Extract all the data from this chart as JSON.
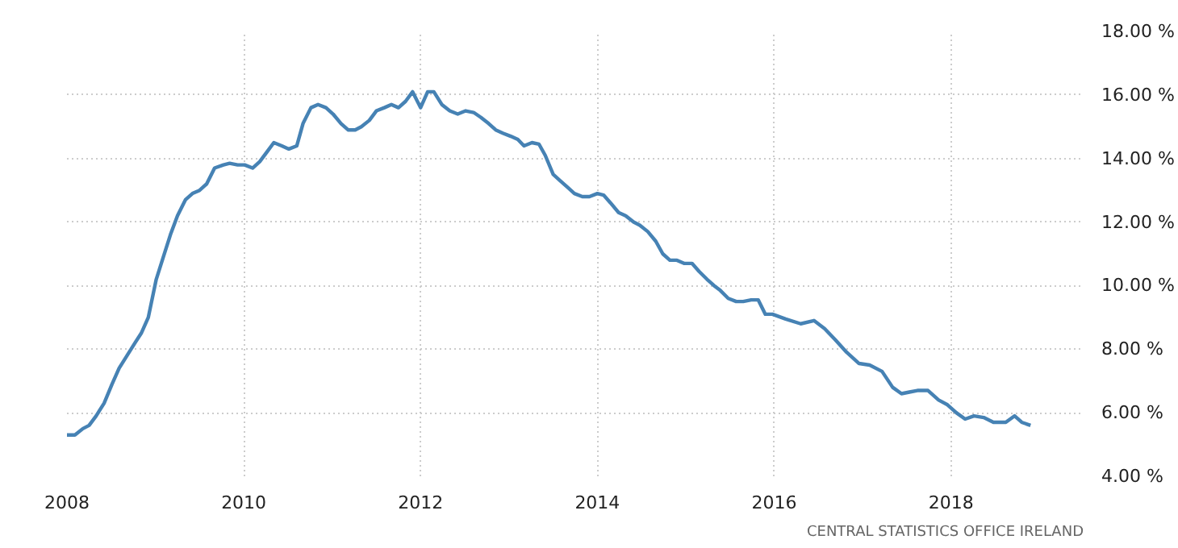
{
  "chart_data": {
    "type": "line",
    "x": [
      2008.0,
      2008.09,
      2008.18,
      2008.25,
      2008.33,
      2008.42,
      2008.51,
      2008.59,
      2008.68,
      2008.77,
      2008.84,
      2008.92,
      2009.01,
      2009.09,
      2009.17,
      2009.25,
      2009.34,
      2009.42,
      2009.5,
      2009.58,
      2009.67,
      2009.77,
      2009.84,
      2009.93,
      2010.01,
      2010.1,
      2010.18,
      2010.26,
      2010.34,
      2010.43,
      2010.51,
      2010.6,
      2010.67,
      2010.76,
      2010.84,
      2010.93,
      2011.01,
      2011.1,
      2011.18,
      2011.26,
      2011.33,
      2011.42,
      2011.5,
      2011.59,
      2011.67,
      2011.75,
      2011.83,
      2011.91,
      2012.0,
      2012.08,
      2012.15,
      2012.24,
      2012.33,
      2012.42,
      2012.51,
      2012.6,
      2012.68,
      2012.77,
      2012.85,
      2012.93,
      2013.02,
      2013.1,
      2013.17,
      2013.26,
      2013.34,
      2013.41,
      2013.5,
      2013.58,
      2013.66,
      2013.74,
      2013.83,
      2013.91,
      2014.0,
      2014.07,
      2014.15,
      2014.24,
      2014.32,
      2014.41,
      2014.48,
      2014.57,
      2014.66,
      2014.74,
      2014.82,
      2014.9,
      2014.98,
      2015.07,
      2015.15,
      2015.24,
      2015.32,
      2015.39,
      2015.48,
      2015.57,
      2015.65,
      2015.74,
      2015.82,
      2015.9,
      2015.98,
      2016.13,
      2016.3,
      2016.45,
      2016.57,
      2016.69,
      2016.82,
      2016.96,
      2017.08,
      2017.22,
      2017.34,
      2017.44,
      2017.53,
      2017.62,
      2017.74,
      2017.86,
      2017.96,
      2018.06,
      2018.16,
      2018.26,
      2018.37,
      2018.48,
      2018.62,
      2018.72,
      2018.8,
      2018.9
    ],
    "series": [
      {
        "color": "#4682b4",
        "values": [
          5.3,
          5.3,
          5.5,
          5.6,
          5.9,
          6.3,
          6.9,
          7.4,
          7.8,
          8.2,
          8.5,
          9.0,
          10.2,
          10.9,
          11.6,
          12.2,
          12.7,
          12.9,
          13.0,
          13.2,
          13.7,
          13.8,
          13.85,
          13.8,
          13.8,
          13.7,
          13.9,
          14.2,
          14.5,
          14.4,
          14.3,
          14.4,
          15.1,
          15.6,
          15.7,
          15.6,
          15.4,
          15.1,
          14.9,
          14.9,
          15.0,
          15.2,
          15.5,
          15.6,
          15.7,
          15.6,
          15.8,
          16.1,
          15.6,
          16.1,
          16.1,
          15.7,
          15.5,
          15.4,
          15.5,
          15.45,
          15.3,
          15.1,
          14.9,
          14.8,
          14.7,
          14.6,
          14.4,
          14.5,
          14.45,
          14.1,
          13.5,
          13.3,
          13.1,
          12.9,
          12.8,
          12.8,
          12.9,
          12.85,
          12.6,
          12.3,
          12.2,
          12.0,
          11.9,
          11.7,
          11.4,
          11.0,
          10.8,
          10.8,
          10.7,
          10.7,
          10.45,
          10.2,
          10.0,
          9.85,
          9.6,
          9.5,
          9.5,
          9.55,
          9.55,
          9.1,
          9.1,
          8.95,
          8.8,
          8.9,
          8.65,
          8.3,
          7.9,
          7.55,
          7.5,
          7.3,
          6.8,
          6.6,
          6.65,
          6.7,
          6.7,
          6.4,
          6.25,
          6.0,
          5.8,
          5.9,
          5.85,
          5.7,
          5.7,
          5.9,
          5.7,
          5.6
        ]
      }
    ],
    "xlim": [
      2008,
      2019.5
    ],
    "xticks": [
      2008,
      2010,
      2012,
      2014,
      2016,
      2018
    ],
    "ylim": [
      4,
      18
    ],
    "yticks": [
      {
        "value": 4,
        "label": "4.00 %"
      },
      {
        "value": 6,
        "label": "6.00 %"
      },
      {
        "value": 8,
        "label": "8.00 %"
      },
      {
        "value": 10,
        "label": "10.00 %"
      },
      {
        "value": 12,
        "label": "12.00 %"
      },
      {
        "value": 14,
        "label": "14.00 %"
      },
      {
        "value": 16,
        "label": "16.00 %"
      },
      {
        "value": 18,
        "label": "18.00 %"
      }
    ],
    "grid": true,
    "annotations": [
      "CENTRAL STATISTICS OFFICE IRELAND"
    ]
  }
}
